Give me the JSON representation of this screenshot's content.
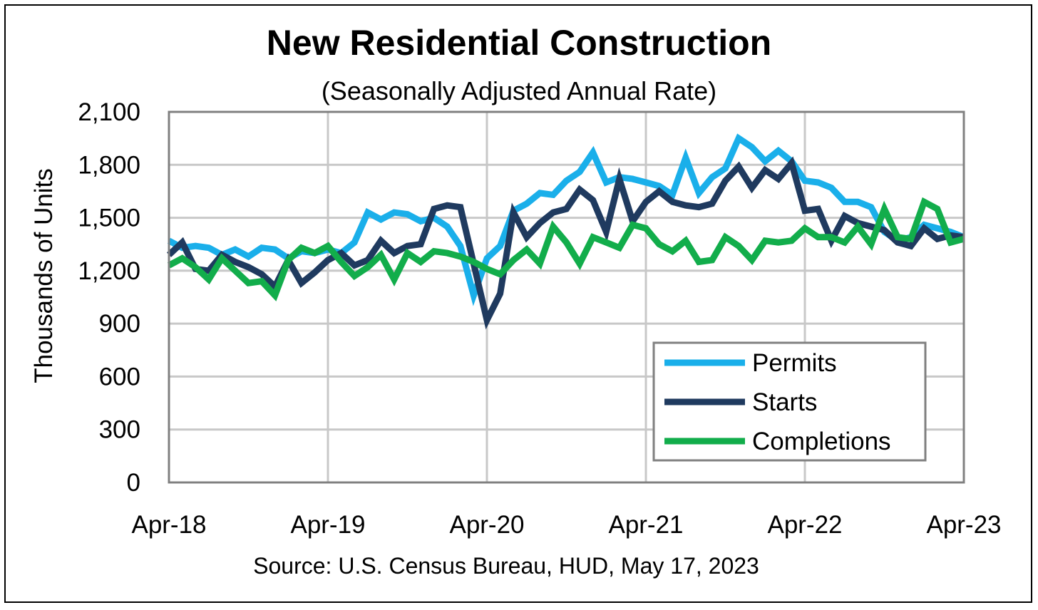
{
  "chart_data": {
    "type": "line",
    "title": "New Residential Construction",
    "subtitle": "(Seasonally Adjusted Annual Rate)",
    "ylabel": "Thousands of Units",
    "xlabel": "",
    "ylim": [
      0,
      2100
    ],
    "yticks": [
      "0",
      "300",
      "600",
      "900",
      "1,200",
      "1,500",
      "1,800",
      "2,100"
    ],
    "ytick_values": [
      0,
      300,
      600,
      900,
      1200,
      1500,
      1800,
      2100
    ],
    "xticks": [
      "Apr-18",
      "Apr-19",
      "Apr-20",
      "Apr-21",
      "Apr-22",
      "Apr-23"
    ],
    "xtick_positions": [
      0,
      12,
      24,
      36,
      48,
      60
    ],
    "x_start": "Apr-18",
    "x_end": "Apr-23",
    "grid": true,
    "legend_position": "bottom-right",
    "source": "Source:  U.S. Census Bureau, HUD, May 17, 2023",
    "series": [
      {
        "name": "Permits",
        "color": "#1AAFEA",
        "values": [
          1370,
          1330,
          1340,
          1330,
          1290,
          1320,
          1280,
          1330,
          1320,
          1270,
          1310,
          1300,
          1320,
          1300,
          1360,
          1530,
          1490,
          1530,
          1520,
          1480,
          1500,
          1450,
          1340,
          1060,
          1270,
          1340,
          1540,
          1580,
          1640,
          1630,
          1710,
          1760,
          1870,
          1700,
          1730,
          1720,
          1700,
          1680,
          1630,
          1840,
          1640,
          1730,
          1780,
          1950,
          1900,
          1820,
          1880,
          1820,
          1710,
          1700,
          1670,
          1590,
          1590,
          1560,
          1420,
          1370,
          1390,
          1460,
          1440,
          1420,
          1390
        ]
      },
      {
        "name": "Starts",
        "color": "#1F3A5F",
        "values": [
          1290,
          1360,
          1210,
          1200,
          1290,
          1250,
          1220,
          1180,
          1110,
          1260,
          1130,
          1190,
          1260,
          1300,
          1230,
          1260,
          1370,
          1300,
          1340,
          1350,
          1550,
          1570,
          1560,
          1240,
          920,
          1070,
          1530,
          1390,
          1470,
          1530,
          1550,
          1660,
          1600,
          1420,
          1720,
          1480,
          1590,
          1650,
          1590,
          1570,
          1560,
          1580,
          1710,
          1790,
          1670,
          1770,
          1720,
          1810,
          1540,
          1550,
          1370,
          1510,
          1470,
          1450,
          1430,
          1360,
          1340,
          1440,
          1380,
          1400,
          1390
        ]
      },
      {
        "name": "Completions",
        "color": "#12AD4B",
        "values": [
          1230,
          1270,
          1220,
          1150,
          1270,
          1200,
          1130,
          1140,
          1060,
          1260,
          1330,
          1300,
          1340,
          1250,
          1170,
          1220,
          1290,
          1150,
          1300,
          1250,
          1310,
          1300,
          1280,
          1250,
          1210,
          1180,
          1260,
          1320,
          1240,
          1450,
          1360,
          1240,
          1390,
          1360,
          1330,
          1460,
          1440,
          1350,
          1310,
          1370,
          1250,
          1260,
          1390,
          1340,
          1260,
          1370,
          1360,
          1370,
          1440,
          1390,
          1390,
          1360,
          1450,
          1350,
          1550,
          1390,
          1380,
          1590,
          1550,
          1360,
          1380
        ]
      }
    ]
  }
}
